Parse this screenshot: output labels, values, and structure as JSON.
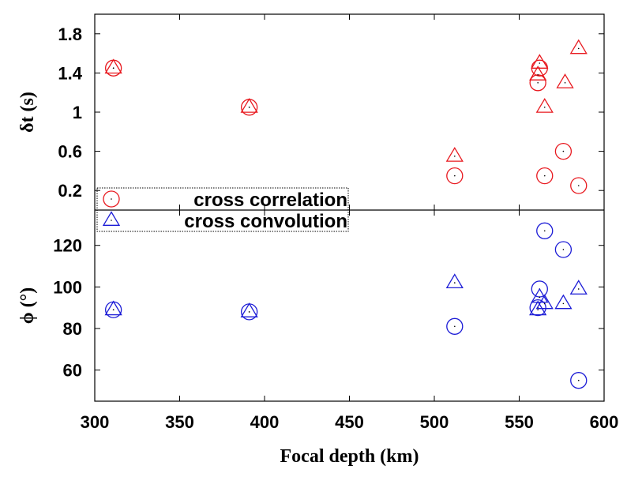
{
  "chart_data": {
    "type": "scatter",
    "xlabel": "Focal depth (km)",
    "x_ticks": [
      "300",
      "350",
      "400",
      "450",
      "500",
      "550",
      "600"
    ],
    "xlim": [
      300,
      600
    ],
    "colors": {
      "top": "#e8191f",
      "bottom": "#1c1cd6"
    },
    "panels": [
      {
        "ylabel": "δt (s)",
        "ylim": [
          0,
          2.0
        ],
        "y_ticks": [
          "0.2",
          "0.6",
          "1",
          "1.4",
          "1.8"
        ],
        "series": [
          {
            "marker": "circle",
            "x": [
              311,
              391,
              512,
              561,
              562,
              565,
              576,
              585
            ],
            "y": [
              1.45,
              1.05,
              0.35,
              1.3,
              1.45,
              0.35,
              0.6,
              0.25
            ]
          },
          {
            "marker": "triangle",
            "x": [
              311,
              391,
              512,
              561,
              562,
              565,
              577,
              585
            ],
            "y": [
              1.45,
              1.05,
              0.55,
              1.38,
              1.5,
              1.05,
              1.3,
              1.65
            ]
          }
        ]
      },
      {
        "ylabel": "ϕ (°)",
        "ylim": [
          45,
          137
        ],
        "y_ticks": [
          "60",
          "80",
          "100",
          "120"
        ],
        "series": [
          {
            "marker": "circle",
            "x": [
              311,
              391,
              512,
              561,
              562,
              565,
              576,
              585
            ],
            "y": [
              89,
              88,
              81,
              90,
              99,
              127,
              118,
              55
            ]
          },
          {
            "marker": "triangle",
            "x": [
              311,
              391,
              512,
              561,
              562,
              565,
              576,
              585
            ],
            "y": [
              89,
              88,
              102,
              89,
              95,
              92,
              92,
              99
            ]
          }
        ]
      }
    ],
    "legend": {
      "placement": "bottom-left of top panel",
      "entries": [
        {
          "label": "cross correlation",
          "marker": "circle"
        },
        {
          "label": "cross convolution",
          "marker": "triangle"
        }
      ]
    }
  }
}
